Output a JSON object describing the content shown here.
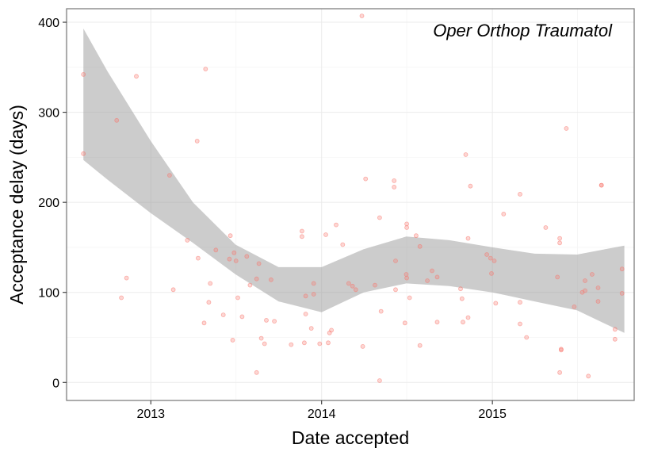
{
  "chart_data": {
    "type": "scatter",
    "title": "",
    "annotation": "Oper Orthop Traumatol",
    "xlabel": "Date accepted",
    "ylabel": "Acceptance delay (days)",
    "xlim": [
      "2012-07-05",
      "2015-10-31"
    ],
    "ylim": [
      -20,
      415
    ],
    "x_ticks": [
      {
        "date": "2013-01-01",
        "label": "2013"
      },
      {
        "date": "2014-01-01",
        "label": "2014"
      },
      {
        "date": "2015-01-01",
        "label": "2015"
      }
    ],
    "y_ticks": [
      0,
      100,
      200,
      300,
      400
    ],
    "x_minor_ticks": [
      "2012-07-02",
      "2013-07-02",
      "2014-07-02",
      "2015-07-02"
    ],
    "y_minor_ticks": [
      50,
      150,
      250,
      350
    ],
    "grid": true,
    "colors": {
      "points": "#f8766d",
      "band": "#999999",
      "grid": "#ebebeb",
      "panel_border": "#7f7f7f"
    },
    "points": [
      {
        "x": "2012-08-10",
        "y": 342
      },
      {
        "x": "2012-08-10",
        "y": 254
      },
      {
        "x": "2012-10-20",
        "y": 291
      },
      {
        "x": "2012-12-01",
        "y": 340
      },
      {
        "x": "2012-11-10",
        "y": 116
      },
      {
        "x": "2012-10-30",
        "y": 94
      },
      {
        "x": "2013-02-10",
        "y": 230
      },
      {
        "x": "2013-02-18",
        "y": 103
      },
      {
        "x": "2013-03-20",
        "y": 158
      },
      {
        "x": "2013-04-10",
        "y": 268
      },
      {
        "x": "2013-04-12",
        "y": 138
      },
      {
        "x": "2013-04-28",
        "y": 348
      },
      {
        "x": "2013-04-25",
        "y": 66
      },
      {
        "x": "2013-05-05",
        "y": 89
      },
      {
        "x": "2013-05-08",
        "y": 110
      },
      {
        "x": "2013-05-20",
        "y": 147
      },
      {
        "x": "2013-06-05",
        "y": 75
      },
      {
        "x": "2013-06-20",
        "y": 163
      },
      {
        "x": "2013-06-18",
        "y": 137
      },
      {
        "x": "2013-06-25",
        "y": 47
      },
      {
        "x": "2013-06-28",
        "y": 144
      },
      {
        "x": "2013-07-02",
        "y": 135
      },
      {
        "x": "2013-07-06",
        "y": 94
      },
      {
        "x": "2013-07-15",
        "y": 73
      },
      {
        "x": "2013-07-25",
        "y": 140
      },
      {
        "x": "2013-08-01",
        "y": 108
      },
      {
        "x": "2013-08-15",
        "y": 115
      },
      {
        "x": "2013-08-20",
        "y": 132
      },
      {
        "x": "2013-08-25",
        "y": 49
      },
      {
        "x": "2013-08-15",
        "y": 11
      },
      {
        "x": "2013-09-01",
        "y": 43
      },
      {
        "x": "2013-09-05",
        "y": 69
      },
      {
        "x": "2013-09-15",
        "y": 114
      },
      {
        "x": "2013-09-22",
        "y": 68
      },
      {
        "x": "2013-10-28",
        "y": 42
      },
      {
        "x": "2013-11-20",
        "y": 168
      },
      {
        "x": "2013-11-20",
        "y": 162
      },
      {
        "x": "2013-11-28",
        "y": 96
      },
      {
        "x": "2013-11-28",
        "y": 76
      },
      {
        "x": "2013-11-25",
        "y": 44
      },
      {
        "x": "2013-12-10",
        "y": 60
      },
      {
        "x": "2013-12-15",
        "y": 110
      },
      {
        "x": "2013-12-15",
        "y": 98
      },
      {
        "x": "2013-12-28",
        "y": 43
      },
      {
        "x": "2014-01-10",
        "y": 164
      },
      {
        "x": "2014-01-15",
        "y": 44
      },
      {
        "x": "2014-01-18",
        "y": 55
      },
      {
        "x": "2014-01-22",
        "y": 58
      },
      {
        "x": "2014-02-01",
        "y": 175
      },
      {
        "x": "2014-02-15",
        "y": 153
      },
      {
        "x": "2014-02-28",
        "y": 110
      },
      {
        "x": "2014-03-08",
        "y": 107
      },
      {
        "x": "2014-03-15",
        "y": 103
      },
      {
        "x": "2014-03-28",
        "y": 407
      },
      {
        "x": "2014-04-05",
        "y": 226
      },
      {
        "x": "2014-03-30",
        "y": 40
      },
      {
        "x": "2014-04-25",
        "y": 108
      },
      {
        "x": "2014-05-05",
        "y": 183
      },
      {
        "x": "2014-05-08",
        "y": 79
      },
      {
        "x": "2014-05-05",
        "y": 2
      },
      {
        "x": "2014-06-05",
        "y": 224
      },
      {
        "x": "2014-06-05",
        "y": 217
      },
      {
        "x": "2014-06-08",
        "y": 135
      },
      {
        "x": "2014-06-08",
        "y": 103
      },
      {
        "x": "2014-06-28",
        "y": 66
      },
      {
        "x": "2014-07-02",
        "y": 176
      },
      {
        "x": "2014-07-02",
        "y": 172
      },
      {
        "x": "2014-07-01",
        "y": 120
      },
      {
        "x": "2014-07-02",
        "y": 116
      },
      {
        "x": "2014-07-08",
        "y": 94
      },
      {
        "x": "2014-07-22",
        "y": 163
      },
      {
        "x": "2014-07-30",
        "y": 151
      },
      {
        "x": "2014-07-30",
        "y": 41
      },
      {
        "x": "2014-08-15",
        "y": 113
      },
      {
        "x": "2014-08-25",
        "y": 124
      },
      {
        "x": "2014-09-05",
        "y": 117
      },
      {
        "x": "2014-09-05",
        "y": 67
      },
      {
        "x": "2014-10-25",
        "y": 104
      },
      {
        "x": "2014-10-28",
        "y": 93
      },
      {
        "x": "2014-10-30",
        "y": 67
      },
      {
        "x": "2014-11-10",
        "y": 72
      },
      {
        "x": "2014-11-10",
        "y": 160
      },
      {
        "x": "2014-11-05",
        "y": 253
      },
      {
        "x": "2014-11-15",
        "y": 218
      },
      {
        "x": "2014-12-20",
        "y": 142
      },
      {
        "x": "2014-12-28",
        "y": 138
      },
      {
        "x": "2014-12-30",
        "y": 121
      },
      {
        "x": "2015-01-05",
        "y": 135
      },
      {
        "x": "2015-01-08",
        "y": 88
      },
      {
        "x": "2015-01-25",
        "y": 187
      },
      {
        "x": "2015-03-01",
        "y": 209
      },
      {
        "x": "2015-03-01",
        "y": 89
      },
      {
        "x": "2015-03-01",
        "y": 65
      },
      {
        "x": "2015-03-15",
        "y": 50
      },
      {
        "x": "2015-04-25",
        "y": 172
      },
      {
        "x": "2015-05-25",
        "y": 160
      },
      {
        "x": "2015-05-25",
        "y": 155
      },
      {
        "x": "2015-05-20",
        "y": 117
      },
      {
        "x": "2015-05-28",
        "y": 37
      },
      {
        "x": "2015-05-28",
        "y": 36
      },
      {
        "x": "2015-05-25",
        "y": 11
      },
      {
        "x": "2015-06-08",
        "y": 282
      },
      {
        "x": "2015-06-25",
        "y": 84
      },
      {
        "x": "2015-07-12",
        "y": 100
      },
      {
        "x": "2015-07-18",
        "y": 102
      },
      {
        "x": "2015-07-18",
        "y": 113
      },
      {
        "x": "2015-07-25",
        "y": 7
      },
      {
        "x": "2015-08-02",
        "y": 120
      },
      {
        "x": "2015-08-15",
        "y": 105
      },
      {
        "x": "2015-08-15",
        "y": 90
      },
      {
        "x": "2015-08-22",
        "y": 219
      },
      {
        "x": "2015-08-22",
        "y": 219
      },
      {
        "x": "2015-09-20",
        "y": 59
      },
      {
        "x": "2015-09-20",
        "y": 48
      },
      {
        "x": "2015-10-05",
        "y": 126
      },
      {
        "x": "2015-10-05",
        "y": 99
      }
    ],
    "band": [
      {
        "x": "2012-08-10",
        "lower": 247,
        "upper": 393
      },
      {
        "x": "2012-10-01",
        "lower": 225,
        "upper": 345
      },
      {
        "x": "2013-01-01",
        "lower": 188,
        "upper": 268
      },
      {
        "x": "2013-04-01",
        "lower": 155,
        "upper": 200
      },
      {
        "x": "2013-07-01",
        "lower": 120,
        "upper": 153
      },
      {
        "x": "2013-10-01",
        "lower": 90,
        "upper": 128
      },
      {
        "x": "2014-01-01",
        "lower": 78,
        "upper": 128
      },
      {
        "x": "2014-04-01",
        "lower": 100,
        "upper": 148
      },
      {
        "x": "2014-07-01",
        "lower": 110,
        "upper": 162
      },
      {
        "x": "2014-10-01",
        "lower": 107,
        "upper": 158
      },
      {
        "x": "2015-01-01",
        "lower": 100,
        "upper": 150
      },
      {
        "x": "2015-04-01",
        "lower": 90,
        "upper": 143
      },
      {
        "x": "2015-07-01",
        "lower": 80,
        "upper": 142
      },
      {
        "x": "2015-10-10",
        "lower": 55,
        "upper": 152
      }
    ]
  }
}
